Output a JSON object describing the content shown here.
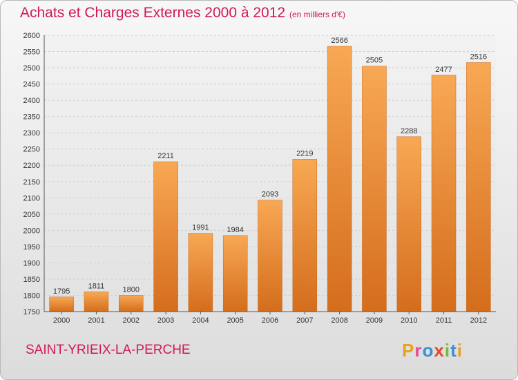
{
  "chart_data": {
    "type": "bar",
    "title": "Achats et Charges Externes 2000 à 2012",
    "subtitle": "(en milliers d'€)",
    "categories": [
      "2000",
      "2001",
      "2002",
      "2003",
      "2004",
      "2005",
      "2006",
      "2007",
      "2008",
      "2009",
      "2010",
      "2011",
      "2012"
    ],
    "values": [
      1795,
      1811,
      1800,
      2211,
      1991,
      1984,
      2093,
      2219,
      2566,
      2505,
      2288,
      2477,
      2516
    ],
    "ylim": [
      1750,
      2600
    ],
    "ytick_step": 50,
    "grid": true,
    "legend": "none",
    "bar_color": "#f0923a",
    "bar_color_dark": "#d97322"
  },
  "footer": {
    "town": "SAINT-YRIEIX-LA-PERCHE",
    "logo_letters": [
      "P",
      "r",
      "o",
      "x",
      "i",
      "t",
      "i"
    ],
    "logo_colors": [
      "#e8a21c",
      "#e24b9b",
      "#3a8fd6",
      "#e24b2a",
      "#7cb83a",
      "#3a8fd6",
      "#e8a21c"
    ]
  }
}
